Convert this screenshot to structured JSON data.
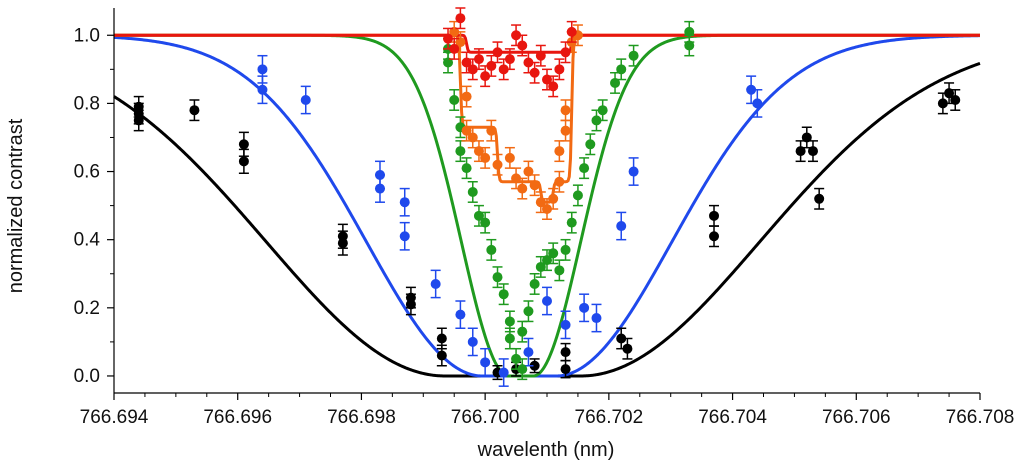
{
  "chart_data": {
    "type": "scatter",
    "title": "",
    "xlabel": "wavelenth (nm)",
    "ylabel": "normalized contrast",
    "xlim": [
      766.694,
      766.708
    ],
    "ylim": [
      -0.05,
      1.08
    ],
    "xticks": [
      766.694,
      766.696,
      766.698,
      766.7,
      766.702,
      766.704,
      766.706,
      766.708
    ],
    "xtick_labels": [
      "766.694",
      "766.696",
      "766.698",
      "766.700",
      "766.702",
      "766.704",
      "766.706",
      "766.708"
    ],
    "yticks": [
      0.0,
      0.2,
      0.4,
      0.6,
      0.8,
      1.0
    ],
    "ytick_labels": [
      "0.0",
      "0.2",
      "0.4",
      "0.6",
      "0.8",
      "1.0"
    ],
    "grid": false,
    "series": [
      {
        "name": "black",
        "color": "#000000",
        "fit": {
          "center": 766.70045,
          "width": 0.0068,
          "flat": 0.0011,
          "depth": 1.0
        },
        "points": [
          {
            "x": 766.6944,
            "y": 0.79,
            "err": 0.03
          },
          {
            "x": 766.6944,
            "y": 0.77,
            "err": 0.03
          },
          {
            "x": 766.6944,
            "y": 0.75,
            "err": 0.03
          },
          {
            "x": 766.6953,
            "y": 0.78,
            "err": 0.03
          },
          {
            "x": 766.6961,
            "y": 0.68,
            "err": 0.035
          },
          {
            "x": 766.6961,
            "y": 0.63,
            "err": 0.035
          },
          {
            "x": 766.6977,
            "y": 0.41,
            "err": 0.035
          },
          {
            "x": 766.6977,
            "y": 0.39,
            "err": 0.035
          },
          {
            "x": 766.6988,
            "y": 0.23,
            "err": 0.03
          },
          {
            "x": 766.6988,
            "y": 0.21,
            "err": 0.03
          },
          {
            "x": 766.6993,
            "y": 0.11,
            "err": 0.03
          },
          {
            "x": 766.6993,
            "y": 0.06,
            "err": 0.03
          },
          {
            "x": 766.7002,
            "y": 0.01,
            "err": 0.02
          },
          {
            "x": 766.7005,
            "y": 0.02,
            "err": 0.02
          },
          {
            "x": 766.7008,
            "y": 0.03,
            "err": 0.02
          },
          {
            "x": 766.7013,
            "y": 0.07,
            "err": 0.025
          },
          {
            "x": 766.7013,
            "y": 0.02,
            "err": 0.025
          },
          {
            "x": 766.7022,
            "y": 0.11,
            "err": 0.03
          },
          {
            "x": 766.7023,
            "y": 0.08,
            "err": 0.03
          },
          {
            "x": 766.7037,
            "y": 0.47,
            "err": 0.03
          },
          {
            "x": 766.7037,
            "y": 0.41,
            "err": 0.03
          },
          {
            "x": 766.7051,
            "y": 0.66,
            "err": 0.03
          },
          {
            "x": 766.7052,
            "y": 0.7,
            "err": 0.03
          },
          {
            "x": 766.7053,
            "y": 0.66,
            "err": 0.03
          },
          {
            "x": 766.7054,
            "y": 0.52,
            "err": 0.03
          },
          {
            "x": 766.7074,
            "y": 0.8,
            "err": 0.03
          },
          {
            "x": 766.7075,
            "y": 0.83,
            "err": 0.03
          },
          {
            "x": 766.7076,
            "y": 0.81,
            "err": 0.03
          }
        ]
      },
      {
        "name": "blue",
        "color": "#1f49ec",
        "fit": {
          "center": 766.70055,
          "width": 0.0044,
          "flat": 0.0006,
          "depth": 1.0
        },
        "points": [
          {
            "x": 766.6964,
            "y": 0.9,
            "err": 0.04
          },
          {
            "x": 766.6964,
            "y": 0.84,
            "err": 0.04
          },
          {
            "x": 766.6971,
            "y": 0.81,
            "err": 0.04
          },
          {
            "x": 766.6983,
            "y": 0.59,
            "err": 0.04
          },
          {
            "x": 766.6983,
            "y": 0.55,
            "err": 0.04
          },
          {
            "x": 766.6987,
            "y": 0.51,
            "err": 0.04
          },
          {
            "x": 766.6987,
            "y": 0.41,
            "err": 0.04
          },
          {
            "x": 766.6992,
            "y": 0.27,
            "err": 0.04
          },
          {
            "x": 766.6996,
            "y": 0.18,
            "err": 0.04
          },
          {
            "x": 766.6998,
            "y": 0.1,
            "err": 0.04
          },
          {
            "x": 766.7,
            "y": 0.04,
            "err": 0.04
          },
          {
            "x": 766.7003,
            "y": 0.01,
            "err": 0.04
          },
          {
            "x": 766.7007,
            "y": 0.07,
            "err": 0.04
          },
          {
            "x": 766.701,
            "y": 0.22,
            "err": 0.04
          },
          {
            "x": 766.7013,
            "y": 0.15,
            "err": 0.04
          },
          {
            "x": 766.7016,
            "y": 0.2,
            "err": 0.04
          },
          {
            "x": 766.7018,
            "y": 0.17,
            "err": 0.04
          },
          {
            "x": 766.7022,
            "y": 0.44,
            "err": 0.04
          },
          {
            "x": 766.7024,
            "y": 0.6,
            "err": 0.04
          },
          {
            "x": 766.7043,
            "y": 0.84,
            "err": 0.04
          },
          {
            "x": 766.7044,
            "y": 0.8,
            "err": 0.04
          }
        ]
      },
      {
        "name": "green",
        "color": "#1f9a1f",
        "fit": {
          "center": 766.70058,
          "width": 0.0018,
          "flat": 0.0002,
          "depth": 1.0
        },
        "points": [
          {
            "x": 766.6994,
            "y": 0.96,
            "err": 0.03
          },
          {
            "x": 766.6994,
            "y": 0.92,
            "err": 0.03
          },
          {
            "x": 766.6995,
            "y": 0.81,
            "err": 0.03
          },
          {
            "x": 766.6996,
            "y": 0.73,
            "err": 0.03
          },
          {
            "x": 766.6996,
            "y": 0.66,
            "err": 0.03
          },
          {
            "x": 766.6997,
            "y": 0.61,
            "err": 0.03
          },
          {
            "x": 766.6998,
            "y": 0.54,
            "err": 0.03
          },
          {
            "x": 766.6999,
            "y": 0.47,
            "err": 0.03
          },
          {
            "x": 766.7,
            "y": 0.45,
            "err": 0.03
          },
          {
            "x": 766.7001,
            "y": 0.37,
            "err": 0.03
          },
          {
            "x": 766.7002,
            "y": 0.29,
            "err": 0.03
          },
          {
            "x": 766.7003,
            "y": 0.24,
            "err": 0.03
          },
          {
            "x": 766.7004,
            "y": 0.16,
            "err": 0.03
          },
          {
            "x": 766.7004,
            "y": 0.11,
            "err": 0.03
          },
          {
            "x": 766.7005,
            "y": 0.05,
            "err": 0.03
          },
          {
            "x": 766.7006,
            "y": 0.02,
            "err": 0.03
          },
          {
            "x": 766.7006,
            "y": 0.13,
            "err": 0.03
          },
          {
            "x": 766.7007,
            "y": 0.19,
            "err": 0.03
          },
          {
            "x": 766.7008,
            "y": 0.27,
            "err": 0.03
          },
          {
            "x": 766.7009,
            "y": 0.32,
            "err": 0.03
          },
          {
            "x": 766.701,
            "y": 0.34,
            "err": 0.03
          },
          {
            "x": 766.7011,
            "y": 0.36,
            "err": 0.03
          },
          {
            "x": 766.7012,
            "y": 0.31,
            "err": 0.03
          },
          {
            "x": 766.7013,
            "y": 0.37,
            "err": 0.03
          },
          {
            "x": 766.7014,
            "y": 0.45,
            "err": 0.03
          },
          {
            "x": 766.7015,
            "y": 0.53,
            "err": 0.03
          },
          {
            "x": 766.7016,
            "y": 0.61,
            "err": 0.03
          },
          {
            "x": 766.7017,
            "y": 0.68,
            "err": 0.03
          },
          {
            "x": 766.7018,
            "y": 0.75,
            "err": 0.03
          },
          {
            "x": 766.7019,
            "y": 0.78,
            "err": 0.03
          },
          {
            "x": 766.7021,
            "y": 0.86,
            "err": 0.03
          },
          {
            "x": 766.7022,
            "y": 0.9,
            "err": 0.03
          },
          {
            "x": 766.7024,
            "y": 0.94,
            "err": 0.03
          },
          {
            "x": 766.7033,
            "y": 1.01,
            "err": 0.03
          },
          {
            "x": 766.7033,
            "y": 0.97,
            "err": 0.03
          }
        ]
      },
      {
        "name": "orange",
        "color": "#f26a13",
        "fit": {
          "type": "steps",
          "steps": [
            {
              "from": 766.6996,
              "to": 766.7014,
              "depth": 0.27
            },
            {
              "from": 766.7002,
              "to": 766.7014,
              "depth": 0.16
            },
            {
              "from": 766.7009,
              "to": 766.7011,
              "depth": 0.06
            }
          ]
        },
        "points": [
          {
            "x": 766.6995,
            "y": 1.01,
            "err": 0.03
          },
          {
            "x": 766.6996,
            "y": 0.98,
            "err": 0.03
          },
          {
            "x": 766.6997,
            "y": 0.82,
            "err": 0.03
          },
          {
            "x": 766.6997,
            "y": 0.72,
            "err": 0.03
          },
          {
            "x": 766.6998,
            "y": 0.7,
            "err": 0.03
          },
          {
            "x": 766.6999,
            "y": 0.66,
            "err": 0.03
          },
          {
            "x": 766.7,
            "y": 0.64,
            "err": 0.03
          },
          {
            "x": 766.7001,
            "y": 0.72,
            "err": 0.03
          },
          {
            "x": 766.7002,
            "y": 0.62,
            "err": 0.03
          },
          {
            "x": 766.7004,
            "y": 0.64,
            "err": 0.03
          },
          {
            "x": 766.7005,
            "y": 0.58,
            "err": 0.03
          },
          {
            "x": 766.7006,
            "y": 0.55,
            "err": 0.03
          },
          {
            "x": 766.7007,
            "y": 0.6,
            "err": 0.03
          },
          {
            "x": 766.7008,
            "y": 0.56,
            "err": 0.03
          },
          {
            "x": 766.7009,
            "y": 0.51,
            "err": 0.03
          },
          {
            "x": 766.701,
            "y": 0.49,
            "err": 0.03
          },
          {
            "x": 766.7011,
            "y": 0.52,
            "err": 0.03
          },
          {
            "x": 766.7012,
            "y": 0.57,
            "err": 0.03
          },
          {
            "x": 766.7012,
            "y": 0.66,
            "err": 0.03
          },
          {
            "x": 766.7013,
            "y": 0.72,
            "err": 0.03
          },
          {
            "x": 766.7013,
            "y": 0.78,
            "err": 0.03
          },
          {
            "x": 766.7014,
            "y": 0.98,
            "err": 0.03
          },
          {
            "x": 766.7015,
            "y": 1.0,
            "err": 0.03
          }
        ]
      },
      {
        "name": "red",
        "color": "#e8160f",
        "fit": {
          "type": "steps",
          "steps": [
            {
              "from": 766.6997,
              "to": 766.7014,
              "depth": 0.05
            }
          ]
        },
        "points": [
          {
            "x": 766.6994,
            "y": 0.99,
            "err": 0.03
          },
          {
            "x": 766.6995,
            "y": 0.96,
            "err": 0.03
          },
          {
            "x": 766.6996,
            "y": 1.05,
            "err": 0.03
          },
          {
            "x": 766.6997,
            "y": 0.92,
            "err": 0.03
          },
          {
            "x": 766.6998,
            "y": 0.9,
            "err": 0.03
          },
          {
            "x": 766.6999,
            "y": 0.93,
            "err": 0.03
          },
          {
            "x": 766.7,
            "y": 0.88,
            "err": 0.03
          },
          {
            "x": 766.7001,
            "y": 0.91,
            "err": 0.03
          },
          {
            "x": 766.7002,
            "y": 0.95,
            "err": 0.03
          },
          {
            "x": 766.7003,
            "y": 0.9,
            "err": 0.03
          },
          {
            "x": 766.7004,
            "y": 0.93,
            "err": 0.03
          },
          {
            "x": 766.7005,
            "y": 1.0,
            "err": 0.03
          },
          {
            "x": 766.7006,
            "y": 0.97,
            "err": 0.03
          },
          {
            "x": 766.7007,
            "y": 0.92,
            "err": 0.03
          },
          {
            "x": 766.7008,
            "y": 0.89,
            "err": 0.03
          },
          {
            "x": 766.7009,
            "y": 0.94,
            "err": 0.03
          },
          {
            "x": 766.701,
            "y": 0.87,
            "err": 0.03
          },
          {
            "x": 766.7011,
            "y": 0.85,
            "err": 0.03
          },
          {
            "x": 766.7012,
            "y": 0.9,
            "err": 0.03
          },
          {
            "x": 766.7013,
            "y": 0.95,
            "err": 0.03
          },
          {
            "x": 766.7014,
            "y": 1.01,
            "err": 0.03
          }
        ]
      }
    ]
  }
}
